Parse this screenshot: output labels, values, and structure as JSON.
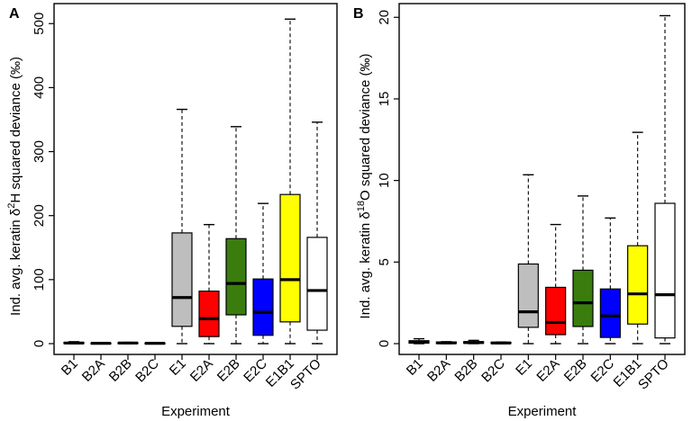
{
  "colors": {
    "B1": "#bebebe",
    "B2A": "#ff0000",
    "B2B": "#2e7d0f",
    "B2C": "#0000ff",
    "E1": "#bebebe",
    "E2A": "#ff0000",
    "E2B": "#3a7d0e",
    "E2C": "#0000ff",
    "E1B1": "#ffff00",
    "SPTO": "#ffffff"
  },
  "chart_data": [
    {
      "panel": "A",
      "type": "boxplot",
      "xlabel": "Experiment",
      "ylabel_parts": {
        "pre": "Ind. avg. keratin δ",
        "sup": "2",
        "post": "H squared deviance (‰)"
      },
      "ylim": [
        0,
        520
      ],
      "yticks": [
        0,
        100,
        200,
        300,
        400,
        500
      ],
      "categories": [
        "B1",
        "B2A",
        "B2B",
        "B2C",
        "E1",
        "E2A",
        "E2B",
        "E2C",
        "E1B1",
        "SPTO"
      ],
      "boxes": [
        {
          "name": "B1",
          "min": 0,
          "q1": 0,
          "median": 1,
          "q3": 2,
          "max": 3
        },
        {
          "name": "B2A",
          "min": 0,
          "q1": 0,
          "median": 0.5,
          "q3": 1,
          "max": 1.5
        },
        {
          "name": "B2B",
          "min": 0,
          "q1": 0,
          "median": 1,
          "q3": 1.5,
          "max": 2
        },
        {
          "name": "B2C",
          "min": 0,
          "q1": 0,
          "median": 0.5,
          "q3": 1,
          "max": 1
        },
        {
          "name": "E1",
          "min": 0,
          "q1": 27,
          "median": 72,
          "q3": 173,
          "max": 366
        },
        {
          "name": "E2A",
          "min": 0,
          "q1": 11,
          "median": 39,
          "q3": 82,
          "max": 186
        },
        {
          "name": "E2B",
          "min": 0,
          "q1": 45,
          "median": 94,
          "q3": 164,
          "max": 339
        },
        {
          "name": "E2C",
          "min": 0,
          "q1": 13,
          "median": 49,
          "q3": 101,
          "max": 219
        },
        {
          "name": "E1B1",
          "min": 0,
          "q1": 34,
          "median": 100,
          "q3": 233,
          "max": 507
        },
        {
          "name": "SPTO",
          "min": 0,
          "q1": 21,
          "median": 83,
          "q3": 166,
          "max": 346
        }
      ]
    },
    {
      "panel": "B",
      "type": "boxplot",
      "xlabel": "Experiment",
      "ylabel_parts": {
        "pre": "Ind. avg. keratin δ",
        "sup": "18",
        "post": "O squared deviance (‰)"
      },
      "ylim": [
        0,
        20.4
      ],
      "yticks": [
        0,
        5,
        10,
        15,
        20
      ],
      "categories": [
        "B1",
        "B2A",
        "B2B",
        "B2C",
        "E1",
        "E2A",
        "E2B",
        "E2C",
        "E1B1",
        "SPTO"
      ],
      "boxes": [
        {
          "name": "B1",
          "min": 0,
          "q1": 0.03,
          "median": 0.1,
          "q3": 0.18,
          "max": 0.3
        },
        {
          "name": "B2A",
          "min": 0,
          "q1": 0.01,
          "median": 0.05,
          "q3": 0.1,
          "max": 0.12
        },
        {
          "name": "B2B",
          "min": 0,
          "q1": 0.02,
          "median": 0.07,
          "q3": 0.12,
          "max": 0.2
        },
        {
          "name": "B2C",
          "min": 0,
          "q1": 0.01,
          "median": 0.04,
          "q3": 0.08,
          "max": 0.1
        },
        {
          "name": "E1",
          "min": 0,
          "q1": 1.0,
          "median": 1.95,
          "q3": 4.88,
          "max": 10.35
        },
        {
          "name": "E2A",
          "min": 0,
          "q1": 0.55,
          "median": 1.3,
          "q3": 3.45,
          "max": 7.3
        },
        {
          "name": "E2B",
          "min": 0,
          "q1": 1.05,
          "median": 2.5,
          "q3": 4.5,
          "max": 9.05
        },
        {
          "name": "E2C",
          "min": 0,
          "q1": 0.38,
          "median": 1.7,
          "q3": 3.35,
          "max": 7.7
        },
        {
          "name": "E1B1",
          "min": 0,
          "q1": 1.2,
          "median": 3.05,
          "q3": 6.0,
          "max": 12.95
        },
        {
          "name": "SPTO",
          "min": 0,
          "q1": 0.35,
          "median": 3.0,
          "q3": 8.6,
          "max": 20.1
        }
      ]
    }
  ]
}
